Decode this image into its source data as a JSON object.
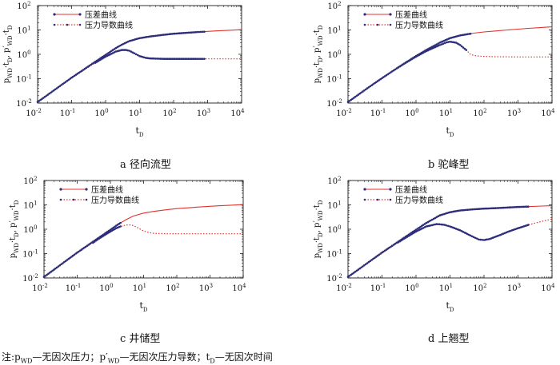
{
  "chart_data": [
    {
      "type": "line",
      "id": "a",
      "caption": "a  径向流型",
      "title": "",
      "xlabel": "t",
      "xlabel_sub": "D",
      "ylabel_parts": [
        [
          "p",
          ""
        ],
        [
          "WD",
          "sub"
        ],
        [
          "·t",
          ""
        ],
        [
          "D",
          "sub"
        ],
        [
          ", p′",
          ""
        ],
        [
          "WD",
          "sub"
        ],
        [
          "·t",
          ""
        ],
        [
          "D",
          "sub"
        ]
      ],
      "xlim": [
        0.01,
        10000
      ],
      "ylim": [
        0.01,
        100
      ],
      "x_ticks": [
        {
          "base": "10",
          "exp": "-2"
        },
        {
          "base": "10",
          "exp": "-1"
        },
        {
          "base": "10",
          "exp": "0"
        },
        {
          "base": "10",
          "exp": "1"
        },
        {
          "base": "10",
          "exp": "2"
        },
        {
          "base": "10",
          "exp": "3"
        },
        {
          "base": "10",
          "exp": "4"
        }
      ],
      "y_ticks": [
        {
          "base": "10",
          "exp": "-2"
        },
        {
          "base": "10",
          "exp": "-1"
        },
        {
          "base": "10",
          "exp": "0"
        },
        {
          "base": "10",
          "exp": "1"
        },
        {
          "base": "10",
          "exp": "2"
        }
      ],
      "legend": [
        "压差曲线",
        "压力导数曲线"
      ],
      "series": [
        {
          "name": "压差曲线",
          "style": "solid",
          "color": "#e0332e",
          "x": [
            0.01,
            0.02,
            0.05,
            0.1,
            0.2,
            0.5,
            1,
            2,
            3,
            5,
            10,
            20,
            50,
            100,
            200,
            500,
            1000,
            2000,
            5000,
            10000
          ],
          "y": [
            0.011,
            0.022,
            0.055,
            0.11,
            0.21,
            0.5,
            0.95,
            1.8,
            2.5,
            3.5,
            4.6,
            5.4,
            6.3,
            7.0,
            7.5,
            8.2,
            8.7,
            9.2,
            9.8,
            10.3
          ]
        },
        {
          "name": "压力导数曲线",
          "style": "dotted",
          "color": "#e0332e",
          "x": [
            0.01,
            0.02,
            0.05,
            0.1,
            0.2,
            0.5,
            1,
            2,
            3,
            4,
            5,
            7,
            10,
            15,
            20,
            50,
            100,
            1000,
            10000
          ],
          "y": [
            0.011,
            0.022,
            0.054,
            0.105,
            0.2,
            0.45,
            0.8,
            1.3,
            1.5,
            1.5,
            1.4,
            1.1,
            0.85,
            0.72,
            0.68,
            0.65,
            0.65,
            0.65,
            0.65
          ]
        },
        {
          "name": "压差数据",
          "style": "markers",
          "color": "#2d2d7a",
          "x": [
            0.01,
            0.02,
            0.05,
            0.1,
            0.2,
            0.5,
            1,
            2,
            3,
            5,
            10,
            20,
            50,
            100,
            200,
            500,
            800
          ],
          "y": [
            0.011,
            0.022,
            0.055,
            0.11,
            0.21,
            0.5,
            0.95,
            1.8,
            2.5,
            3.5,
            4.6,
            5.4,
            6.3,
            7.0,
            7.5,
            8.2,
            8.5
          ]
        },
        {
          "name": "导数数据",
          "style": "markers",
          "color": "#2d2d7a",
          "x": [
            0.5,
            1,
            2,
            3,
            4,
            5,
            7,
            10,
            15,
            20,
            50,
            100,
            200,
            500,
            800
          ],
          "y": [
            0.45,
            0.8,
            1.3,
            1.5,
            1.5,
            1.4,
            1.1,
            0.85,
            0.72,
            0.68,
            0.65,
            0.65,
            0.65,
            0.65,
            0.65
          ]
        }
      ]
    },
    {
      "type": "line",
      "id": "b",
      "caption": "b  驼峰型",
      "title": "",
      "xlabel": "t",
      "xlabel_sub": "D",
      "ylabel_parts": [
        [
          "p",
          ""
        ],
        [
          "WD",
          "sub"
        ],
        [
          "·t",
          ""
        ],
        [
          "D",
          "sub"
        ],
        [
          ", p′",
          ""
        ],
        [
          "WD",
          "sub"
        ],
        [
          "·t",
          ""
        ],
        [
          "D",
          "sub"
        ]
      ],
      "xlim": [
        0.01,
        10000
      ],
      "ylim": [
        0.01,
        100
      ],
      "x_ticks": [
        {
          "base": "10",
          "exp": "-2"
        },
        {
          "base": "10",
          "exp": "-1"
        },
        {
          "base": "10",
          "exp": "0"
        },
        {
          "base": "10",
          "exp": "1"
        },
        {
          "base": "10",
          "exp": "2"
        },
        {
          "base": "10",
          "exp": "3"
        },
        {
          "base": "10",
          "exp": "4"
        }
      ],
      "y_ticks": [
        {
          "base": "10",
          "exp": "-2"
        },
        {
          "base": "10",
          "exp": "-1"
        },
        {
          "base": "10",
          "exp": "0"
        },
        {
          "base": "10",
          "exp": "1"
        },
        {
          "base": "10",
          "exp": "2"
        }
      ],
      "legend": [
        "压差曲线",
        "压力导数曲线"
      ],
      "series": [
        {
          "name": "压差曲线",
          "style": "solid",
          "color": "#e0332e",
          "x": [
            0.01,
            0.02,
            0.05,
            0.1,
            0.2,
            0.5,
            1,
            2,
            5,
            10,
            20,
            50,
            100,
            200,
            500,
            1000,
            2000,
            5000,
            10000
          ],
          "y": [
            0.011,
            0.022,
            0.054,
            0.105,
            0.2,
            0.46,
            0.85,
            1.5,
            3.0,
            4.6,
            6.0,
            7.4,
            8.3,
            9.0,
            10.0,
            10.8,
            11.6,
            12.6,
            13.4
          ]
        },
        {
          "name": "压力导数曲线",
          "style": "dotted",
          "color": "#e0332e",
          "x": [
            0.01,
            0.02,
            0.05,
            0.1,
            0.2,
            0.5,
            1,
            2,
            5,
            8,
            10,
            15,
            20,
            30,
            40,
            50,
            70,
            100,
            200,
            1000,
            10000
          ],
          "y": [
            0.011,
            0.022,
            0.054,
            0.105,
            0.2,
            0.45,
            0.8,
            1.35,
            2.4,
            3.1,
            3.3,
            3.0,
            2.4,
            1.5,
            1.0,
            0.9,
            0.85,
            0.82,
            0.8,
            0.78,
            0.78
          ]
        },
        {
          "name": "压差数据",
          "style": "markers",
          "color": "#2d2d7a",
          "x": [
            0.01,
            0.02,
            0.05,
            0.1,
            0.2,
            0.5,
            1,
            2,
            5,
            10,
            20,
            40
          ],
          "y": [
            0.011,
            0.022,
            0.054,
            0.105,
            0.2,
            0.46,
            0.85,
            1.5,
            3.0,
            4.6,
            6.0,
            7.0
          ]
        },
        {
          "name": "导数数据",
          "style": "markers",
          "color": "#2d2d7a",
          "x": [
            0.3,
            0.5,
            1,
            2,
            5,
            8,
            10,
            15,
            20,
            30
          ],
          "y": [
            0.29,
            0.45,
            0.8,
            1.35,
            2.4,
            3.1,
            3.3,
            3.0,
            2.4,
            1.5
          ]
        }
      ]
    },
    {
      "type": "line",
      "id": "c",
      "caption": "c  井储型",
      "title": "",
      "xlabel": "t",
      "xlabel_sub": "D",
      "ylabel_parts": [
        [
          "p",
          ""
        ],
        [
          "WD",
          "sub"
        ],
        [
          "·t",
          ""
        ],
        [
          "D",
          "sub"
        ],
        [
          ", p′",
          ""
        ],
        [
          "WD",
          "sub"
        ],
        [
          "·t",
          ""
        ],
        [
          "D",
          "sub"
        ]
      ],
      "xlim": [
        0.01,
        10000
      ],
      "ylim": [
        0.01,
        100
      ],
      "x_ticks": [
        {
          "base": "10",
          "exp": "-2"
        },
        {
          "base": "10",
          "exp": "-1"
        },
        {
          "base": "10",
          "exp": "0"
        },
        {
          "base": "10",
          "exp": "1"
        },
        {
          "base": "10",
          "exp": "2"
        },
        {
          "base": "10",
          "exp": "3"
        },
        {
          "base": "10",
          "exp": "4"
        }
      ],
      "y_ticks": [
        {
          "base": "10",
          "exp": "-2"
        },
        {
          "base": "10",
          "exp": "-1"
        },
        {
          "base": "10",
          "exp": "0"
        },
        {
          "base": "10",
          "exp": "1"
        },
        {
          "base": "10",
          "exp": "2"
        }
      ],
      "legend": [
        "压差曲线",
        "压力导数曲线"
      ],
      "series": [
        {
          "name": "压差曲线",
          "style": "solid",
          "color": "#e0332e",
          "x": [
            0.01,
            0.02,
            0.05,
            0.1,
            0.2,
            0.5,
            1,
            2,
            3,
            5,
            10,
            20,
            50,
            100,
            200,
            500,
            1000,
            2000,
            5000,
            10000
          ],
          "y": [
            0.011,
            0.022,
            0.055,
            0.11,
            0.21,
            0.5,
            0.95,
            1.8,
            2.5,
            3.5,
            4.6,
            5.4,
            6.3,
            7.0,
            7.5,
            8.2,
            8.7,
            9.2,
            9.8,
            10.3
          ]
        },
        {
          "name": "压力导数曲线",
          "style": "dotted",
          "color": "#e0332e",
          "x": [
            0.01,
            0.02,
            0.05,
            0.1,
            0.2,
            0.5,
            1,
            2,
            3,
            4,
            5,
            7,
            10,
            15,
            20,
            50,
            100,
            1000,
            10000
          ],
          "y": [
            0.011,
            0.022,
            0.054,
            0.105,
            0.2,
            0.45,
            0.8,
            1.3,
            1.5,
            1.5,
            1.4,
            1.1,
            0.85,
            0.72,
            0.68,
            0.65,
            0.65,
            0.65,
            0.65
          ]
        },
        {
          "name": "压差数据",
          "style": "markers",
          "color": "#2d2d7a",
          "x": [
            0.01,
            0.02,
            0.05,
            0.1,
            0.2,
            0.5,
            1,
            1.5,
            2
          ],
          "y": [
            0.011,
            0.022,
            0.055,
            0.11,
            0.21,
            0.5,
            0.95,
            1.4,
            1.8
          ]
        },
        {
          "name": "导数数据",
          "style": "markers",
          "color": "#2d2d7a",
          "x": [
            0.3,
            0.5,
            1,
            1.5,
            2
          ],
          "y": [
            0.28,
            0.45,
            0.8,
            1.1,
            1.3
          ]
        }
      ]
    },
    {
      "type": "line",
      "id": "d",
      "caption": "d  上翘型",
      "title": "",
      "xlabel": "t",
      "xlabel_sub": "D",
      "ylabel_parts": [
        [
          "p",
          ""
        ],
        [
          "WD",
          "sub"
        ],
        [
          "·t",
          ""
        ],
        [
          "D",
          "sub"
        ],
        [
          ", p′",
          ""
        ],
        [
          "WD",
          "sub"
        ],
        [
          "·t",
          ""
        ],
        [
          "D",
          "sub"
        ]
      ],
      "xlim": [
        0.01,
        10000
      ],
      "ylim": [
        0.01,
        100
      ],
      "x_ticks": [
        {
          "base": "10",
          "exp": "-2"
        },
        {
          "base": "10",
          "exp": "-1"
        },
        {
          "base": "10",
          "exp": "0"
        },
        {
          "base": "10",
          "exp": "1"
        },
        {
          "base": "10",
          "exp": "2"
        },
        {
          "base": "10",
          "exp": "3"
        },
        {
          "base": "10",
          "exp": "4"
        }
      ],
      "y_ticks": [
        {
          "base": "10",
          "exp": "-2"
        },
        {
          "base": "10",
          "exp": "-1"
        },
        {
          "base": "10",
          "exp": "0"
        },
        {
          "base": "10",
          "exp": "1"
        },
        {
          "base": "10",
          "exp": "2"
        }
      ],
      "legend": [
        "压差曲线",
        "压力导数曲线"
      ],
      "series": [
        {
          "name": "压差曲线",
          "style": "solid",
          "color": "#e0332e",
          "x": [
            0.01,
            0.02,
            0.05,
            0.1,
            0.2,
            0.5,
            1,
            2,
            5,
            10,
            20,
            50,
            100,
            200,
            500,
            1000,
            2000,
            5000,
            10000
          ],
          "y": [
            0.011,
            0.022,
            0.055,
            0.11,
            0.21,
            0.5,
            0.95,
            1.8,
            3.7,
            5.0,
            5.9,
            6.6,
            7.0,
            7.3,
            7.8,
            8.2,
            8.5,
            8.9,
            9.2
          ]
        },
        {
          "name": "压力导数曲线",
          "style": "dotted",
          "color": "#e0332e",
          "x": [
            0.01,
            0.02,
            0.05,
            0.1,
            0.2,
            0.5,
            1,
            2,
            4,
            5,
            7,
            10,
            20,
            40,
            70,
            100,
            150,
            200,
            300,
            500,
            1000,
            2000,
            5000,
            10000
          ],
          "y": [
            0.011,
            0.022,
            0.054,
            0.105,
            0.2,
            0.45,
            0.8,
            1.3,
            1.62,
            1.6,
            1.5,
            1.3,
            0.9,
            0.55,
            0.38,
            0.36,
            0.4,
            0.47,
            0.58,
            0.78,
            1.1,
            1.5,
            2.1,
            2.6
          ]
        },
        {
          "name": "压差数据",
          "style": "markers",
          "color": "#2d2d7a",
          "x": [
            0.01,
            0.02,
            0.05,
            0.1,
            0.2,
            0.5,
            1,
            2,
            5,
            10,
            20,
            50,
            100,
            200,
            500,
            1000,
            2000
          ],
          "y": [
            0.011,
            0.022,
            0.055,
            0.11,
            0.21,
            0.5,
            0.95,
            1.8,
            3.7,
            5.0,
            5.9,
            6.6,
            7.0,
            7.3,
            7.8,
            8.2,
            8.5
          ]
        },
        {
          "name": "导数数据",
          "style": "markers",
          "color": "#2d2d7a",
          "x": [
            0.3,
            0.5,
            1,
            2,
            4,
            5,
            7,
            10,
            20,
            40,
            70,
            100,
            150,
            200,
            300,
            500,
            1000,
            2000
          ],
          "y": [
            0.29,
            0.45,
            0.8,
            1.3,
            1.62,
            1.6,
            1.5,
            1.3,
            0.9,
            0.55,
            0.38,
            0.36,
            0.4,
            0.47,
            0.58,
            0.78,
            1.1,
            1.5
          ]
        }
      ]
    }
  ],
  "note": {
    "lead": "注:",
    "runs": [
      [
        "p",
        ""
      ],
      [
        "WD",
        "sub"
      ],
      [
        "—无因次压力；p′",
        ""
      ],
      [
        "WD",
        "sub"
      ],
      [
        "—无因次压力导数；t",
        ""
      ],
      [
        "D",
        "sub"
      ],
      [
        "—无因次时间",
        ""
      ]
    ]
  }
}
